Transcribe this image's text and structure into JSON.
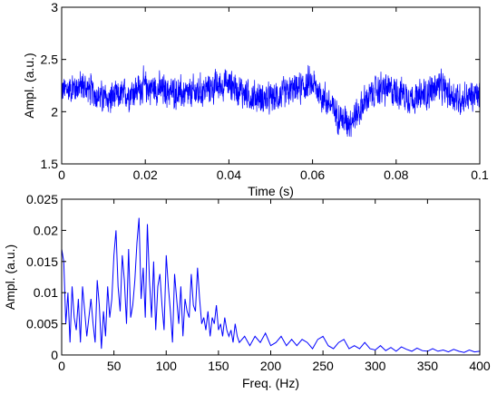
{
  "chart_data": [
    {
      "type": "line",
      "title": "",
      "xlabel": "Time (s)",
      "ylabel": "Ampl. (a.u.)",
      "xlim": [
        0,
        0.1
      ],
      "ylim": [
        1.5,
        3
      ],
      "x_ticks": [
        0,
        0.02,
        0.04,
        0.06,
        0.08,
        0.1
      ],
      "x_tick_labels": [
        "0",
        "0.02",
        "0.04",
        "0.06",
        "0.08",
        "0.1"
      ],
      "y_ticks": [
        1.5,
        2,
        2.5,
        3
      ],
      "y_tick_labels": [
        "1.5",
        "2",
        "2.5",
        "3"
      ],
      "grid": false,
      "line_color": "#0000ff",
      "series": [
        {
          "x": [
            0,
            0.005,
            0.01,
            0.015,
            0.02,
            0.025,
            0.03,
            0.035,
            0.04,
            0.045,
            0.05,
            0.055,
            0.06,
            0.063,
            0.066,
            0.068,
            0.07,
            0.073,
            0.076,
            0.08,
            0.085,
            0.09,
            0.095,
            0.1
          ],
          "values": [
            2.2,
            2.25,
            2.12,
            2.16,
            2.24,
            2.2,
            2.16,
            2.22,
            2.27,
            2.15,
            2.12,
            2.2,
            2.27,
            2.12,
            1.98,
            1.9,
            1.95,
            2.12,
            2.22,
            2.2,
            2.12,
            2.25,
            2.12,
            2.16
          ],
          "noise_amplitude": 0.18
        }
      ]
    },
    {
      "type": "line",
      "title": "",
      "xlabel": "Freq. (Hz)",
      "ylabel": "Ampl. (a.u.)",
      "xlim": [
        0,
        400
      ],
      "ylim": [
        0,
        0.025
      ],
      "x_ticks": [
        0,
        50,
        100,
        150,
        200,
        250,
        300,
        350,
        400
      ],
      "x_tick_labels": [
        "0",
        "50",
        "100",
        "150",
        "200",
        "250",
        "300",
        "350",
        "400"
      ],
      "y_ticks": [
        0,
        0.005,
        0.01,
        0.015,
        0.02,
        0.025
      ],
      "y_tick_labels": [
        "0",
        "0.005",
        "0.01",
        "0.015",
        "0.02",
        "0.025"
      ],
      "grid": false,
      "line_color": "#0000ff",
      "series": [
        {
          "x": [
            0,
            2,
            4,
            6,
            8,
            10,
            12,
            14,
            16,
            18,
            20,
            22,
            24,
            26,
            28,
            30,
            32,
            34,
            36,
            38,
            40,
            42,
            44,
            46,
            48,
            50,
            52,
            54,
            56,
            58,
            60,
            62,
            64,
            66,
            68,
            70,
            72,
            74,
            76,
            78,
            80,
            82,
            84,
            86,
            88,
            90,
            92,
            94,
            96,
            98,
            100,
            102,
            104,
            106,
            108,
            110,
            112,
            114,
            116,
            118,
            120,
            122,
            124,
            126,
            128,
            130,
            132,
            134,
            136,
            138,
            140,
            142,
            144,
            146,
            148,
            150,
            152,
            154,
            156,
            158,
            160,
            162,
            164,
            166,
            168,
            170,
            175,
            180,
            185,
            190,
            195,
            200,
            205,
            210,
            215,
            220,
            225,
            230,
            235,
            240,
            245,
            250,
            255,
            260,
            265,
            270,
            275,
            280,
            285,
            290,
            295,
            300,
            305,
            310,
            315,
            320,
            325,
            330,
            335,
            340,
            345,
            350,
            355,
            360,
            365,
            370,
            375,
            380,
            385,
            390,
            395,
            400
          ],
          "values": [
            0.017,
            0.015,
            0.005,
            0.01,
            0.002,
            0.011,
            0.006,
            0.004,
            0.009,
            0.002,
            0.011,
            0.007,
            0.003,
            0.006,
            0.009,
            0.005,
            0.002,
            0.012,
            0.008,
            0.001,
            0.007,
            0.003,
            0.011,
            0.006,
            0.009,
            0.016,
            0.02,
            0.011,
            0.007,
            0.016,
            0.012,
            0.005,
            0.017,
            0.006,
            0.008,
            0.012,
            0.018,
            0.022,
            0.009,
            0.014,
            0.006,
            0.021,
            0.012,
            0.006,
            0.015,
            0.004,
            0.011,
            0.013,
            0.008,
            0.004,
            0.016,
            0.011,
            0.007,
            0.002,
            0.013,
            0.009,
            0.005,
            0.011,
            0.003,
            0.009,
            0.007,
            0.006,
            0.013,
            0.008,
            0.007,
            0.014,
            0.009,
            0.005,
            0.006,
            0.004,
            0.007,
            0.003,
            0.006,
            0.005,
            0.008,
            0.004,
            0.005,
            0.003,
            0.006,
            0.004,
            0.003,
            0.004,
            0.002,
            0.005,
            0.003,
            0.002,
            0.003,
            0.0015,
            0.003,
            0.002,
            0.0035,
            0.0015,
            0.002,
            0.003,
            0.0015,
            0.0025,
            0.0015,
            0.0025,
            0.002,
            0.001,
            0.0025,
            0.003,
            0.0015,
            0.001,
            0.002,
            0.0025,
            0.001,
            0.0015,
            0.001,
            0.002,
            0.001,
            0.0008,
            0.0015,
            0.0007,
            0.0012,
            0.0006,
            0.0013,
            0.0009,
            0.0006,
            0.0011,
            0.0007,
            0.0006,
            0.001,
            0.0006,
            0.0008,
            0.0005,
            0.0009,
            0.0006,
            0.0004,
            0.0008,
            0.0005,
            0.0006
          ]
        }
      ]
    }
  ]
}
